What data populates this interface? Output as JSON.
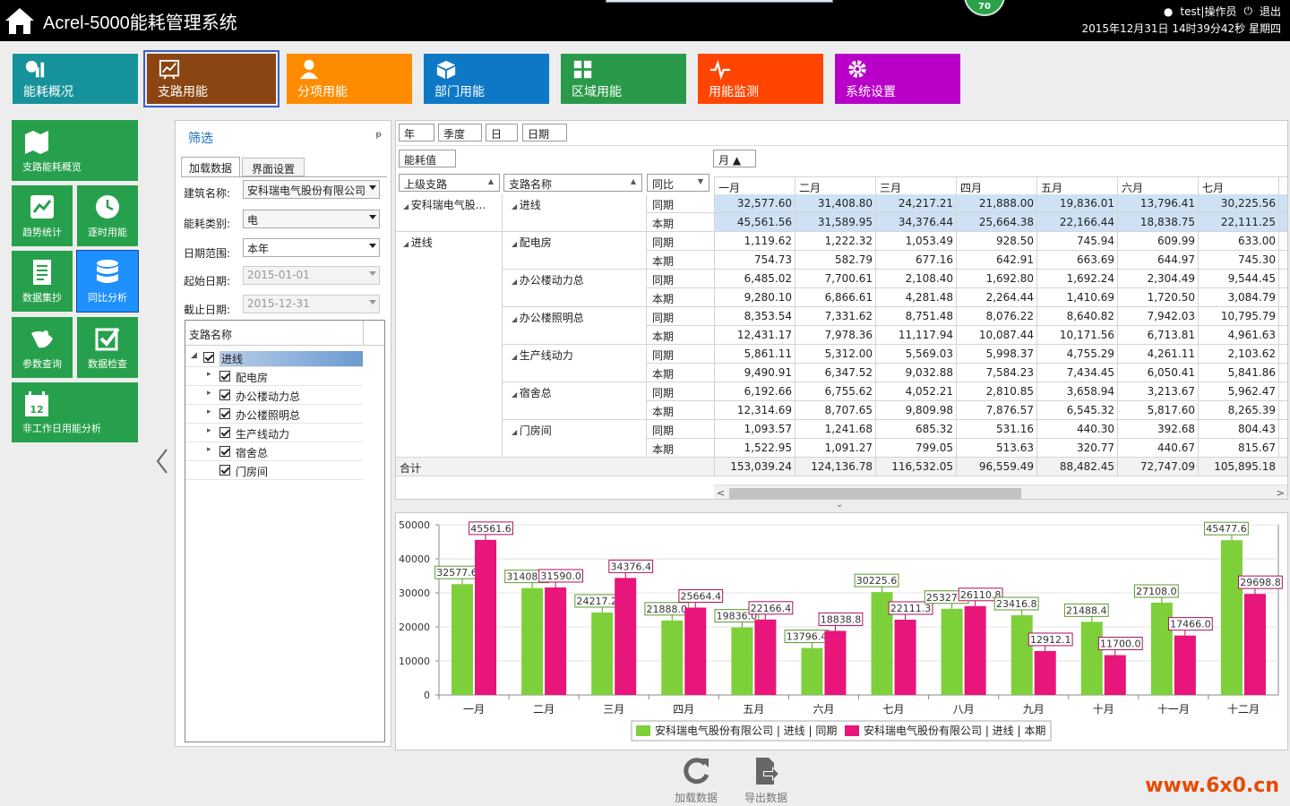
{
  "header": {
    "title": "Acrel-5000能耗管理系统",
    "badge": "70",
    "user": "test|操作员",
    "logout": "退出",
    "datetime": "2015年12月31日 14时39分42秒 星期四"
  },
  "nav": [
    {
      "label": "能耗概况",
      "color": "#16939a",
      "icon": "bar-chart-icon"
    },
    {
      "label": "支路用能",
      "color": "#8b4513",
      "icon": "line-chart-icon",
      "active": true
    },
    {
      "label": "分项用能",
      "color": "#ff8c00",
      "icon": "user-icon"
    },
    {
      "label": "部门用能",
      "color": "#0d78c5",
      "icon": "cube-icon"
    },
    {
      "label": "区域用能",
      "color": "#2a9a4a",
      "icon": "grid-icon"
    },
    {
      "label": "用能监测",
      "color": "#ff4500",
      "icon": "pulse-icon"
    },
    {
      "label": "系统设置",
      "color": "#b800c8",
      "icon": "gear-icon"
    }
  ],
  "side": [
    {
      "label": "支路能耗概览",
      "icon": "map-icon"
    },
    {
      "label": "趋势统计",
      "icon": "trend-icon"
    },
    {
      "label": "逐时用能",
      "icon": "clock-icon"
    },
    {
      "label": "数据集抄",
      "icon": "document-icon"
    },
    {
      "label": "同比分析",
      "icon": "database-icon",
      "active": true
    },
    {
      "label": "参数查询",
      "icon": "satellite-icon"
    },
    {
      "label": "数据检查",
      "icon": "check-icon"
    },
    {
      "label": "非工作日用能分析",
      "icon": "calendar-icon",
      "calendar_num": "12"
    }
  ],
  "filter": {
    "title": "筛选",
    "pin": "ᵽ",
    "tabs": [
      "加载数据",
      "界面设置"
    ],
    "building_label": "建筑名称:",
    "building_value": "安科瑞电气股份有限公司",
    "energy_label": "能耗类别:",
    "energy_value": "电",
    "range_label": "日期范围:",
    "range_value": "本年",
    "start_label": "起始日期:",
    "start_value": "2015-01-01",
    "end_label": "截止日期:",
    "end_value": "2015-12-31",
    "tree_header": "支路名称",
    "tree": [
      {
        "label": "进线",
        "level": 0,
        "selected": true
      },
      {
        "label": "配电房",
        "level": 1
      },
      {
        "label": "办公楼动力总",
        "level": 1
      },
      {
        "label": "办公楼照明总",
        "level": 1
      },
      {
        "label": "生产线动力",
        "level": 1
      },
      {
        "label": "宿舍总",
        "level": 1
      },
      {
        "label": "门房间",
        "level": 1,
        "leaf": true
      }
    ]
  },
  "grid": {
    "period_buttons": [
      "年",
      "季度",
      "日",
      "日期"
    ],
    "value_field": "能耗值",
    "column_field": "月 ▲",
    "headers": [
      "上级支路",
      "支路名称",
      "同比"
    ],
    "months": [
      "一月",
      "二月",
      "三月",
      "四月",
      "五月",
      "六月",
      "七月"
    ],
    "rows": [
      {
        "parent": "安科瑞电气股...",
        "name": "进线",
        "type": "同期",
        "values": [
          "32,577.60",
          "31,408.80",
          "24,217.21",
          "21,888.00",
          "19,836.01",
          "13,796.41",
          "30,225.56"
        ],
        "hl": true
      },
      {
        "parent": "",
        "name": "",
        "type": "本期",
        "values": [
          "45,561.56",
          "31,589.95",
          "34,376.44",
          "25,664.38",
          "22,166.44",
          "18,838.75",
          "22,111.25"
        ],
        "hl": true
      },
      {
        "parent": "进线",
        "name": "配电房",
        "type": "同期",
        "values": [
          "1,119.62",
          "1,222.32",
          "1,053.49",
          "928.50",
          "745.94",
          "609.99",
          "633.00"
        ]
      },
      {
        "parent": "",
        "name": "",
        "type": "本期",
        "values": [
          "754.73",
          "582.79",
          "677.16",
          "642.91",
          "663.69",
          "644.97",
          "745.30"
        ]
      },
      {
        "parent": "",
        "name": "办公楼动力总",
        "type": "同期",
        "values": [
          "6,485.02",
          "7,700.61",
          "2,108.40",
          "1,692.80",
          "1,692.24",
          "2,304.49",
          "9,544.45"
        ]
      },
      {
        "parent": "",
        "name": "",
        "type": "本期",
        "values": [
          "9,280.10",
          "6,866.61",
          "4,281.48",
          "2,264.44",
          "1,410.69",
          "1,720.50",
          "3,084.79"
        ]
      },
      {
        "parent": "",
        "name": "办公楼照明总",
        "type": "同期",
        "values": [
          "8,353.54",
          "7,331.62",
          "8,751.48",
          "8,076.22",
          "8,640.82",
          "7,942.03",
          "10,795.79"
        ]
      },
      {
        "parent": "",
        "name": "",
        "type": "本期",
        "values": [
          "12,431.17",
          "7,978.36",
          "11,117.94",
          "10,087.44",
          "10,171.56",
          "6,713.81",
          "4,961.63"
        ]
      },
      {
        "parent": "",
        "name": "生产线动力",
        "type": "同期",
        "values": [
          "5,861.11",
          "5,312.00",
          "5,569.03",
          "5,998.37",
          "4,755.29",
          "4,261.11",
          "2,103.62"
        ]
      },
      {
        "parent": "",
        "name": "",
        "type": "本期",
        "values": [
          "9,490.91",
          "6,347.52",
          "9,032.88",
          "7,584.23",
          "7,434.45",
          "6,050.41",
          "5,841.86"
        ]
      },
      {
        "parent": "",
        "name": "宿舍总",
        "type": "同期",
        "values": [
          "6,192.66",
          "6,755.62",
          "4,052.21",
          "2,810.85",
          "3,658.94",
          "3,213.67",
          "5,962.47"
        ]
      },
      {
        "parent": "",
        "name": "",
        "type": "本期",
        "values": [
          "12,314.69",
          "8,707.65",
          "9,809.98",
          "7,876.57",
          "6,545.32",
          "5,817.60",
          "8,265.39"
        ]
      },
      {
        "parent": "",
        "name": "门房间",
        "type": "同期",
        "values": [
          "1,093.57",
          "1,241.68",
          "685.32",
          "531.16",
          "440.30",
          "392.68",
          "804.43"
        ]
      },
      {
        "parent": "",
        "name": "",
        "type": "本期",
        "values": [
          "1,522.95",
          "1,091.27",
          "799.05",
          "513.63",
          "320.77",
          "440.67",
          "815.67"
        ]
      }
    ],
    "total_label": "合计",
    "totals": [
      "153,039.24",
      "124,136.78",
      "116,532.05",
      "96,559.49",
      "88,482.45",
      "72,747.09",
      "105,895.18"
    ]
  },
  "chart_data": {
    "type": "bar",
    "categories": [
      "一月",
      "二月",
      "三月",
      "四月",
      "五月",
      "六月",
      "七月",
      "八月",
      "九月",
      "十月",
      "十一月",
      "十二月"
    ],
    "series": [
      {
        "name": "安科瑞电气股份有限公司 | 进线 | 同期",
        "color": "#7ed03a",
        "label_color": "#5a9a2a",
        "values": [
          32577.6,
          31408.8,
          24217.2,
          21888.0,
          19836.0,
          13796.4,
          30225.6,
          25327.2,
          23416.8,
          21488.4,
          27108.0,
          45477.6
        ]
      },
      {
        "name": "安科瑞电气股份有限公司 | 进线 | 本期",
        "color": "#e8157a",
        "label_color": "#b0105e",
        "values": [
          45561.6,
          31590.0,
          34376.4,
          25664.4,
          22166.4,
          18838.8,
          22111.3,
          26110.8,
          12912.1,
          11700.0,
          17466.0,
          29698.8
        ]
      }
    ],
    "yticks": [
      0,
      10000,
      20000,
      30000,
      40000,
      50000
    ],
    "ylim": [
      0,
      50000
    ],
    "grid": true,
    "legend": "bottom"
  },
  "actions": {
    "load": "加载数据",
    "export": "导出数据"
  },
  "watermark": "www.6x0.cn"
}
